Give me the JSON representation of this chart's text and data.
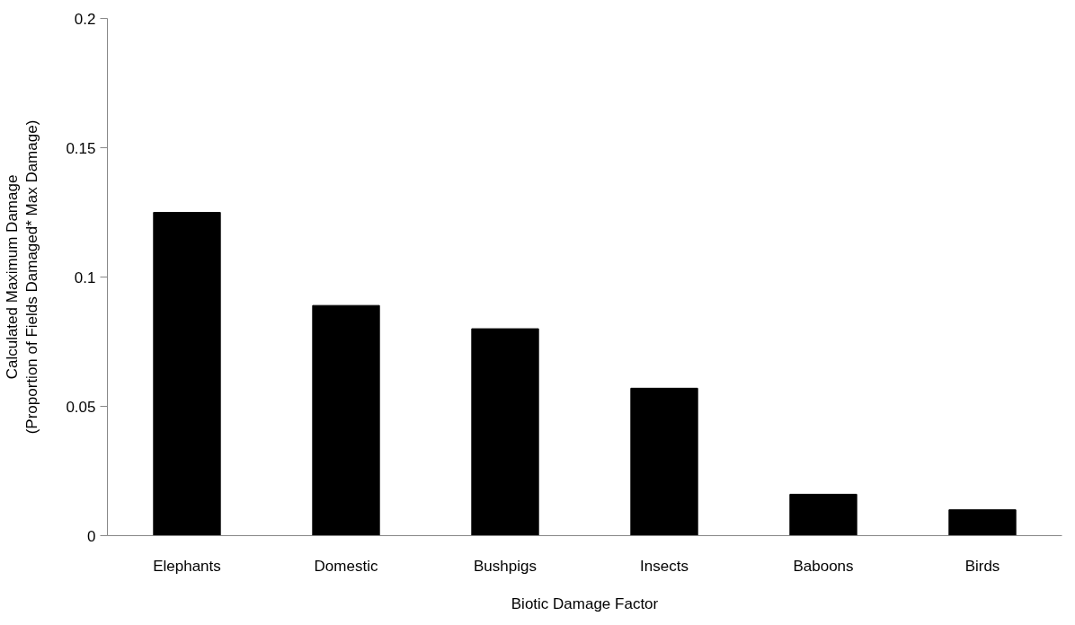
{
  "chart_data": {
    "type": "bar",
    "xlabel": "Biotic Damage Factor",
    "ylabel": "Calculated Maximum Damage\n(Proportion of Fields Damaged* Max Damage)",
    "categories": [
      "Elephants",
      "Domestic",
      "Bushpigs",
      "Insects",
      "Baboons",
      "Birds"
    ],
    "values": [
      0.125,
      0.089,
      0.08,
      0.057,
      0.016,
      0.01
    ],
    "color": "#000000",
    "ylim": [
      0,
      0.2
    ],
    "yticks": [
      0,
      0.05,
      0.1,
      0.15,
      0.2
    ],
    "grid": false
  }
}
